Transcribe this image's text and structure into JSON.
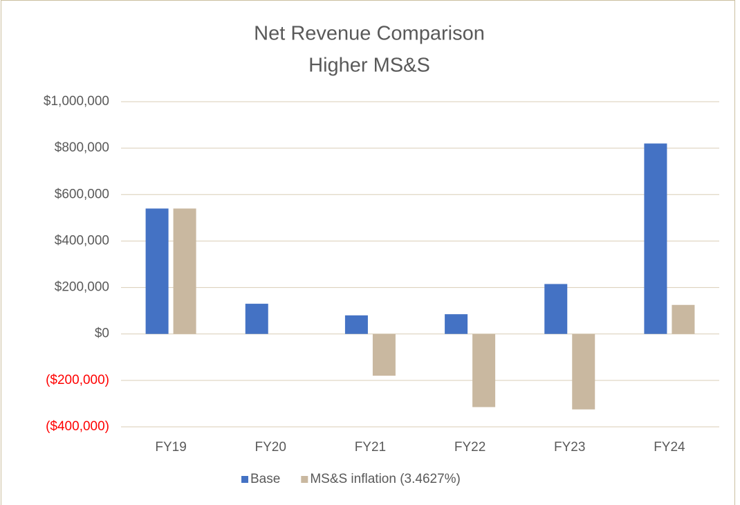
{
  "chart_data": {
    "type": "bar",
    "title": [
      "Net Revenue Comparison",
      "Higher MS&S"
    ],
    "categories": [
      "FY19",
      "FY20",
      "FY21",
      "FY22",
      "FY23",
      "FY24"
    ],
    "series": [
      {
        "name": "Base",
        "color": "#4472c4",
        "values": [
          540000,
          130000,
          80000,
          85000,
          215000,
          820000
        ]
      },
      {
        "name": "MS&S inflation (3.4627%)",
        "color": "#c9b8a0",
        "values": [
          540000,
          0,
          -180000,
          -315000,
          -325000,
          125000
        ]
      }
    ],
    "ylim": [
      -400000,
      1000000
    ],
    "yticks": [
      {
        "value": -400000,
        "label": "($400,000)"
      },
      {
        "value": -200000,
        "label": "($200,000)"
      },
      {
        "value": 0,
        "label": "$0"
      },
      {
        "value": 200000,
        "label": "$200,000"
      },
      {
        "value": 400000,
        "label": "$400,000"
      },
      {
        "value": 600000,
        "label": "$600,000"
      },
      {
        "value": 800000,
        "label": "$800,000"
      },
      {
        "value": 1000000,
        "label": "$1,000,000"
      }
    ],
    "negative_tick_color": "#ff0000",
    "grid": true,
    "legend": "bottom"
  }
}
